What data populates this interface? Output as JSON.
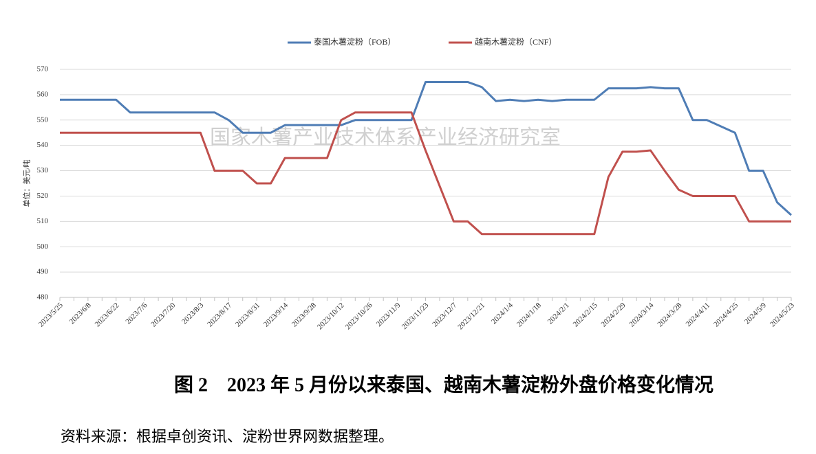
{
  "chart_data": {
    "type": "line",
    "y_label": "单位：美元/吨",
    "watermark": "国家木薯产业技术体系产业经济研究室",
    "caption": "图 2　2023 年 5 月份以来泰国、越南木薯淀粉外盘价格变化情况",
    "source": "资料来源：根据卓创资讯、淀粉世界网数据整理。",
    "categories": [
      "2023/5/25",
      null,
      "2023/6/8",
      null,
      "2023/6/22",
      null,
      "2023/7/6",
      null,
      "2023/7/20",
      null,
      "2023/8/3",
      null,
      "2023/8/17",
      null,
      "2023/8/31",
      null,
      "2023/9/14",
      null,
      "2023/9/28",
      null,
      "2023/10/12",
      null,
      "2023/10/26",
      null,
      "2023/11/9",
      null,
      "2023/11/23",
      null,
      "2023/12/7",
      null,
      "2023/12/21",
      null,
      "2024/1/4",
      null,
      "2024/1/18",
      null,
      "2024/2/1",
      null,
      "2024/2/15",
      null,
      "2024/2/29",
      null,
      "2024/3/14",
      null,
      "2024/3/28",
      null,
      "2024/4/11",
      null,
      "2024/4/25",
      null,
      "2024/5/9",
      null,
      "2024/5/23"
    ],
    "series": [
      {
        "name": "泰国木薯淀粉（FOB）",
        "color": "#4f7db5",
        "values": [
          558,
          558,
          558,
          558,
          558,
          553,
          553,
          553,
          553,
          553,
          553,
          553,
          550,
          545,
          545,
          545,
          548,
          548,
          548,
          548,
          548,
          550,
          550,
          550,
          550,
          550,
          565,
          565,
          565,
          565,
          563,
          557.5,
          558,
          557.5,
          558,
          557.5,
          558,
          558,
          558,
          562.5,
          562.5,
          562.5,
          563,
          562.5,
          562.5,
          550,
          550,
          547.5,
          545,
          530,
          530,
          517.5,
          512.5
        ]
      },
      {
        "name": "越南木薯淀粉（CNF）",
        "color": "#c0504d",
        "values": [
          545,
          545,
          545,
          545,
          545,
          545,
          545,
          545,
          545,
          545,
          545,
          530,
          530,
          530,
          525,
          525,
          535,
          535,
          535,
          535,
          550,
          553,
          553,
          553,
          553,
          553,
          538,
          524,
          510,
          510,
          505,
          505,
          505,
          505,
          505,
          505,
          505,
          505,
          505,
          527.5,
          537.5,
          537.5,
          538,
          530,
          522.5,
          520,
          520,
          520,
          520,
          510,
          510,
          510,
          510
        ]
      }
    ],
    "ylim": [
      480,
      570
    ],
    "yticks": [
      480,
      490,
      500,
      510,
      520,
      530,
      540,
      550,
      560,
      570
    ],
    "grid": true
  }
}
